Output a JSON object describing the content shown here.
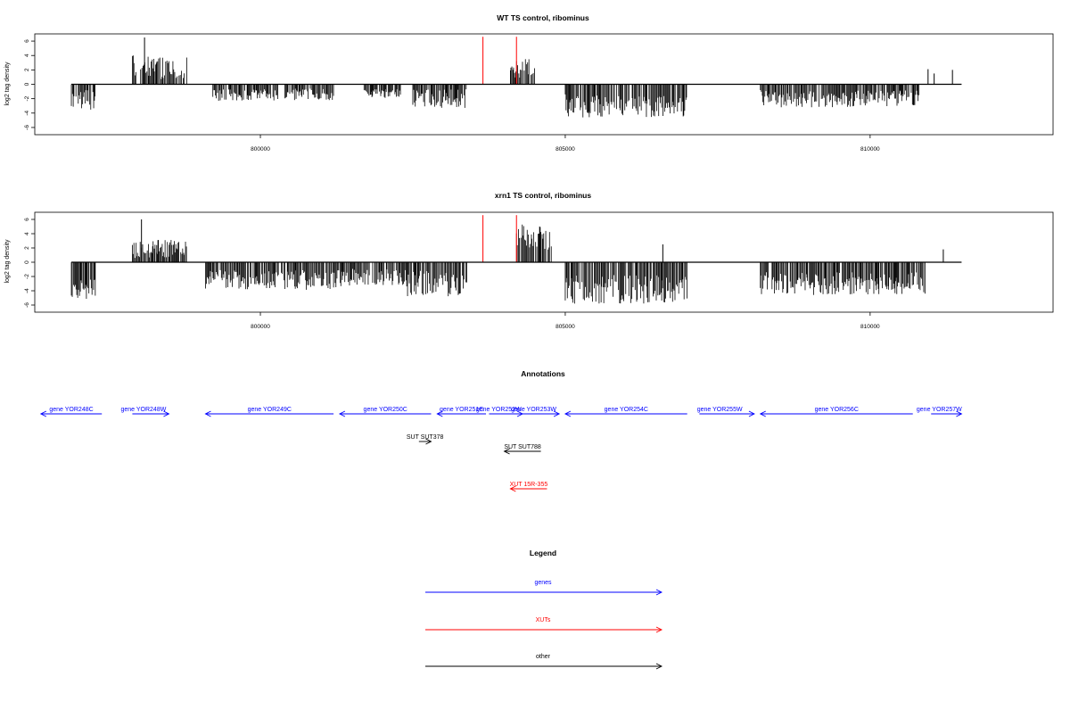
{
  "chart_data": [
    {
      "type": "bar",
      "title": "WT TS control, ribominus",
      "ylabel": "log2 tag density",
      "xlim": [
        796300,
        813000
      ],
      "ylim": [
        -7,
        7
      ],
      "x_ticks": [
        800000,
        805000,
        810000
      ],
      "x_tick_labels": [
        "800000",
        "805000",
        "810000"
      ],
      "y_ticks": [
        -6,
        -4,
        -2,
        0,
        2,
        4,
        6
      ],
      "y_tick_labels": [
        "-6",
        "-4",
        "-2",
        "0",
        "2",
        "4",
        "6"
      ],
      "baseline": {
        "x0": 796900,
        "x1": 811500
      },
      "segments": [
        {
          "x0": 796900,
          "x1": 797300,
          "mean": -2.2,
          "amp": 1.4
        },
        {
          "x0": 797900,
          "x1": 798300,
          "mean": 2.5,
          "amp": 1.5
        },
        {
          "x0": 798300,
          "x1": 798800,
          "mean": 2.3,
          "amp": 1.6
        },
        {
          "x0": 799200,
          "x1": 800300,
          "mean": -1.5,
          "amp": 0.8
        },
        {
          "x0": 800400,
          "x1": 801200,
          "mean": -1.4,
          "amp": 0.8
        },
        {
          "x0": 801700,
          "x1": 802300,
          "mean": -1.3,
          "amp": 0.6
        },
        {
          "x0": 802500,
          "x1": 803400,
          "mean": -2.0,
          "amp": 1.3
        },
        {
          "x0": 804100,
          "x1": 804500,
          "mean": 2.2,
          "amp": 1.3
        },
        {
          "x0": 805000,
          "x1": 807000,
          "mean": -3.0,
          "amp": 1.6
        },
        {
          "x0": 808200,
          "x1": 810800,
          "mean": -2.0,
          "amp": 1.2
        }
      ],
      "spikes": [
        {
          "x": 798100,
          "y": 6.5,
          "color": "#000000"
        },
        {
          "x": 803650,
          "y": 6.6,
          "color": "#ff0000"
        },
        {
          "x": 804200,
          "y": 6.6,
          "color": "#ff0000"
        },
        {
          "x": 810950,
          "y": 2.1,
          "color": "#000000"
        },
        {
          "x": 811050,
          "y": 1.5,
          "color": "#000000"
        },
        {
          "x": 811350,
          "y": 2.0,
          "color": "#000000"
        }
      ]
    },
    {
      "type": "bar",
      "title": "xrn1 TS control, ribominus",
      "ylabel": "log2 tag density",
      "xlim": [
        796300,
        813000
      ],
      "ylim": [
        -7,
        7
      ],
      "x_ticks": [
        800000,
        805000,
        810000
      ],
      "x_tick_labels": [
        "800000",
        "805000",
        "810000"
      ],
      "y_ticks": [
        -6,
        -4,
        -2,
        0,
        2,
        4,
        6
      ],
      "y_tick_labels": [
        "-6",
        "-4",
        "-2",
        "0",
        "2",
        "4",
        "6"
      ],
      "baseline": {
        "x0": 796900,
        "x1": 811500
      },
      "segments": [
        {
          "x0": 796900,
          "x1": 797300,
          "mean": -3.8,
          "amp": 1.4
        },
        {
          "x0": 797900,
          "x1": 798300,
          "mean": 1.8,
          "amp": 1.2
        },
        {
          "x0": 798300,
          "x1": 798800,
          "mean": 2.0,
          "amp": 1.3
        },
        {
          "x0": 799100,
          "x1": 801500,
          "mean": -2.5,
          "amp": 1.4
        },
        {
          "x0": 801500,
          "x1": 802400,
          "mean": -2.2,
          "amp": 1.3
        },
        {
          "x0": 802400,
          "x1": 803400,
          "mean": -3.0,
          "amp": 1.8
        },
        {
          "x0": 804200,
          "x1": 804800,
          "mean": 3.5,
          "amp": 1.8
        },
        {
          "x0": 805000,
          "x1": 807000,
          "mean": -3.8,
          "amp": 2.0
        },
        {
          "x0": 808200,
          "x1": 810900,
          "mean": -3.0,
          "amp": 1.6
        }
      ],
      "spikes": [
        {
          "x": 798050,
          "y": 6.0,
          "color": "#000000"
        },
        {
          "x": 803650,
          "y": 6.6,
          "color": "#ff0000"
        },
        {
          "x": 804200,
          "y": 6.6,
          "color": "#ff0000"
        },
        {
          "x": 806600,
          "y": 2.5,
          "color": "#000000"
        },
        {
          "x": 811200,
          "y": 1.8,
          "color": "#000000"
        }
      ]
    }
  ],
  "annotations": {
    "title": "Annotations",
    "features": [
      {
        "label": "gene YOR248C",
        "x0": 796400,
        "x1": 797400,
        "row": 0,
        "strand": "-",
        "color": "#0000ff",
        "label_offset": 0
      },
      {
        "label": "gene YOR248W",
        "x0": 797900,
        "x1": 798500,
        "row": 0,
        "strand": "+",
        "color": "#0000ff",
        "label_offset": -8
      },
      {
        "label": "gene YOR249C",
        "x0": 799100,
        "x1": 801200,
        "row": 0,
        "strand": "-",
        "color": "#0000ff",
        "label_offset": 0
      },
      {
        "label": "gene YOR250C",
        "x0": 801300,
        "x1": 802800,
        "row": 0,
        "strand": "-",
        "color": "#0000ff",
        "label_offset": 0
      },
      {
        "label": "gene YOR251C",
        "x0": 802900,
        "x1": 803700,
        "row": 0,
        "strand": "-",
        "color": "#0000ff",
        "label_offset": 0
      },
      {
        "label": "gene YOR252W",
        "x0": 803750,
        "x1": 804300,
        "row": 0,
        "strand": "+",
        "color": "#0000ff",
        "label_offset": -8
      },
      {
        "label": "gene YOR253W",
        "x0": 804300,
        "x1": 804900,
        "row": 0,
        "strand": "+",
        "color": "#0000ff",
        "label_offset": -8
      },
      {
        "label": "gene YOR254C",
        "x0": 805000,
        "x1": 807000,
        "row": 0,
        "strand": "-",
        "color": "#0000ff",
        "label_offset": 0
      },
      {
        "label": "gene YOR255W",
        "x0": 807200,
        "x1": 808100,
        "row": 0,
        "strand": "+",
        "color": "#0000ff",
        "label_offset": -8
      },
      {
        "label": "gene YOR256C",
        "x0": 808200,
        "x1": 810700,
        "row": 0,
        "strand": "-",
        "color": "#0000ff",
        "label_offset": 0
      },
      {
        "label": "gene YOR257W",
        "x0": 811000,
        "x1": 811500,
        "row": 0,
        "strand": "+",
        "color": "#0000ff",
        "label_offset": -8
      },
      {
        "label": "SUT SUT378",
        "x0": 802600,
        "x1": 802800,
        "row": 1,
        "strand": "+",
        "color": "#000000",
        "label_offset": 0
      },
      {
        "label": "SUT SUT788",
        "x0": 804000,
        "x1": 804600,
        "row": 2,
        "strand": "-",
        "color": "#000000",
        "label_offset": 0
      },
      {
        "label": "XUT 15R-355",
        "x0": 804100,
        "x1": 804700,
        "row": 3,
        "strand": "-",
        "color": "#ff0000",
        "label_offset": 0
      }
    ]
  },
  "legend": {
    "title": "Legend",
    "items": [
      {
        "label": "genes",
        "color": "#0000ff"
      },
      {
        "label": "XUTs",
        "color": "#ff0000"
      },
      {
        "label": "other",
        "color": "#000000"
      }
    ]
  }
}
